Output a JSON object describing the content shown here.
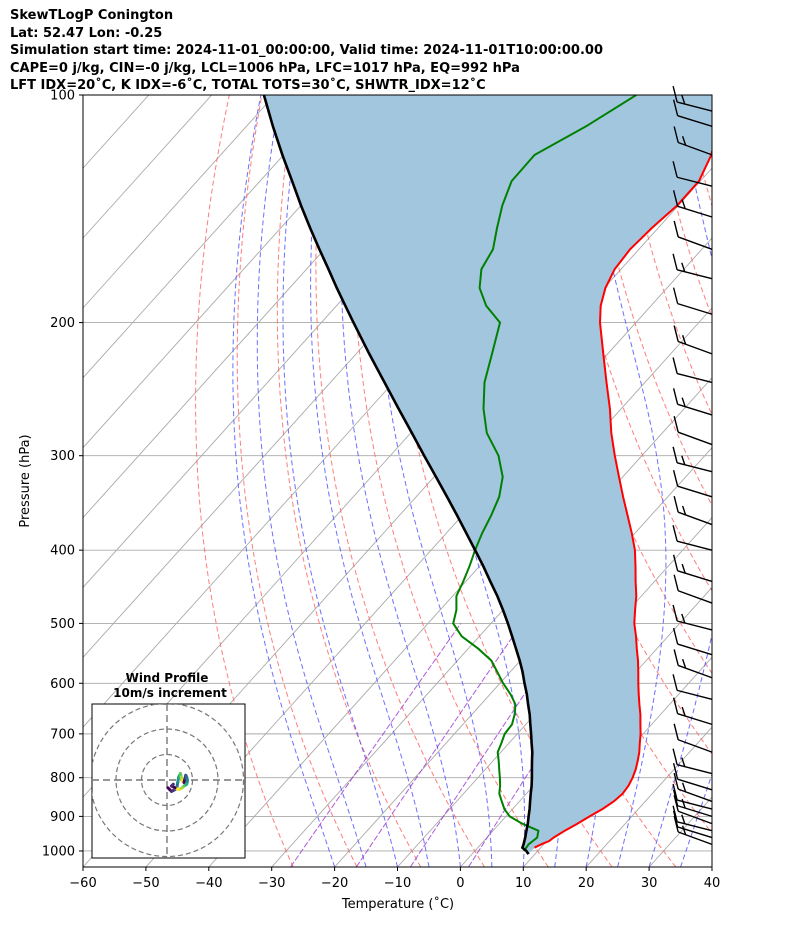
{
  "header": {
    "line1": "SkewTLogP Conington",
    "line2": "Lat: 52.47   Lon: -0.25",
    "line3": "Simulation start time: 2024-11-01_00:00:00, Valid time: 2024-11-01T10:00:00.00",
    "line4": "CAPE=0 j/kg, CIN=-0 j/kg, LCL=1006 hPa, LFC=1017 hPa, EQ=992 hPa",
    "line5": "LFT IDX=20˚C, K IDX=-6˚C, TOTAL TOTS=30˚C, SHWTR_IDX=12˚C"
  },
  "chart_data": {
    "type": "skewt",
    "title": "SkewTLogP Conington",
    "xlabel": "Temperature (˚C)",
    "ylabel": "Pressure (hPa)",
    "xlim": [
      -60,
      40
    ],
    "ylim": [
      1050,
      100
    ],
    "x_ticks": [
      "−60",
      "−50",
      "−40",
      "−30",
      "−20",
      "−10",
      "0",
      "10",
      "20",
      "30",
      "40"
    ],
    "x_tick_values": [
      -60,
      -50,
      -40,
      -30,
      -20,
      -10,
      0,
      10,
      20,
      30,
      40
    ],
    "y_ticks": [
      "100",
      "200",
      "300",
      "400",
      "500",
      "600",
      "700",
      "800",
      "900",
      "1000"
    ],
    "y_tick_values": [
      100,
      200,
      300,
      400,
      500,
      600,
      700,
      800,
      900,
      1000
    ],
    "colors": {
      "temperature": "#ff0000",
      "dewpoint": "#008000",
      "parcel": "#000000",
      "fill": "#a3c6df",
      "dry_adiabat": "#ff6666",
      "moist_adiabat": "#5555ff",
      "mixing_ratio": "#9933cc",
      "isotherm": "#aaaaaa"
    },
    "series": [
      {
        "name": "temperature",
        "pressure": [
          990,
          980,
          970,
          960,
          940,
          920,
          900,
          880,
          860,
          840,
          820,
          800,
          780,
          760,
          740,
          720,
          700,
          680,
          660,
          640,
          620,
          600,
          580,
          560,
          540,
          520,
          500,
          480,
          460,
          440,
          420,
          400,
          380,
          360,
          340,
          320,
          300,
          280,
          260,
          240,
          220,
          200,
          190,
          180,
          170,
          160,
          150,
          140,
          130,
          120,
          110,
          100
        ],
        "temperature": [
          9.0,
          9.6,
          10.4,
          10.6,
          11.4,
          12.4,
          13.3,
          14.3,
          15.0,
          15.3,
          15.1,
          14.6,
          13.9,
          13.0,
          12.0,
          10.8,
          9.6,
          8.2,
          6.8,
          5.2,
          3.6,
          2.0,
          0.4,
          -1.3,
          -3.2,
          -5.1,
          -7.2,
          -9.0,
          -10.8,
          -13.0,
          -15.2,
          -17.6,
          -20.5,
          -23.7,
          -27.1,
          -30.6,
          -34.3,
          -38.1,
          -41.8,
          -46.1,
          -50.7,
          -55.7,
          -58.0,
          -59.8,
          -61.0,
          -61.4,
          -61.0,
          -60.2,
          -60.2,
          -62.0,
          -65.0,
          -68.5
        ]
      },
      {
        "name": "dewpoint",
        "pressure": [
          1000,
          980,
          960,
          940,
          920,
          900,
          880,
          860,
          840,
          820,
          800,
          780,
          760,
          740,
          720,
          700,
          680,
          660,
          640,
          620,
          600,
          580,
          560,
          540,
          520,
          500,
          480,
          460,
          440,
          420,
          400,
          380,
          360,
          340,
          320,
          300,
          280,
          260,
          240,
          220,
          200,
          190,
          180,
          170,
          160,
          150,
          140,
          130,
          120,
          110,
          100
        ],
        "temperature": [
          7.8,
          7.6,
          8.0,
          7.2,
          3.6,
          0.6,
          -1.3,
          -2.8,
          -4.3,
          -5.3,
          -6.5,
          -7.8,
          -9.1,
          -10.5,
          -11.2,
          -12.0,
          -12.2,
          -13.2,
          -14.5,
          -16.8,
          -19.5,
          -22.0,
          -24.6,
          -28.4,
          -32.8,
          -36.0,
          -37.4,
          -39.4,
          -40.4,
          -41.6,
          -43.0,
          -44.3,
          -45.4,
          -46.8,
          -49.1,
          -52.8,
          -57.9,
          -61.9,
          -65.5,
          -68.4,
          -71.6,
          -76.2,
          -79.8,
          -82.2,
          -83.2,
          -85.6,
          -88.0,
          -90.0,
          -90.1,
          -86.0,
          -82.5
        ]
      },
      {
        "name": "parcel",
        "pressure": [
          1010,
          1000,
          990,
          980,
          960,
          940,
          920,
          900,
          880,
          860,
          840,
          820,
          800,
          780,
          760,
          740,
          720,
          700,
          680,
          660,
          640,
          620,
          600,
          580,
          560,
          540,
          520,
          500,
          480,
          460,
          440,
          420,
          400,
          380,
          360,
          340,
          320,
          300,
          280,
          260,
          240,
          220,
          200,
          190,
          180,
          170,
          160,
          150,
          140,
          130,
          120,
          110,
          100
        ],
        "temperature": [
          9.0,
          8.2,
          7.1,
          6.8,
          6.1,
          5.3,
          4.5,
          3.6,
          2.7,
          1.7,
          0.7,
          -0.3,
          -1.4,
          -2.6,
          -3.8,
          -5.0,
          -6.4,
          -7.8,
          -9.3,
          -10.8,
          -12.5,
          -14.2,
          -16.1,
          -18.0,
          -20.1,
          -22.4,
          -24.8,
          -27.3,
          -30.0,
          -32.9,
          -36.1,
          -39.4,
          -43.0,
          -46.8,
          -50.8,
          -55.1,
          -59.7,
          -64.6,
          -69.8,
          -75.4,
          -81.4,
          -87.9,
          -94.9,
          -98.6,
          -102.5,
          -106.5,
          -110.8,
          -115.3,
          -120.0,
          -124.9,
          -130.2,
          -135.8,
          -141.7
        ]
      }
    ],
    "wind_barbs_pressure": [
      980,
      960,
      940,
      920,
      900,
      880,
      860,
      830,
      790,
      740,
      680,
      630,
      590,
      550,
      510,
      470,
      440,
      400,
      370,
      340,
      315,
      290,
      265,
      240,
      220,
      195,
      175,
      160,
      145,
      132,
      120,
      110,
      105
    ],
    "hodograph": {
      "title": "Wind Profile",
      "subtitle": "10m/s increment",
      "rings": [
        10,
        20,
        30
      ]
    }
  }
}
